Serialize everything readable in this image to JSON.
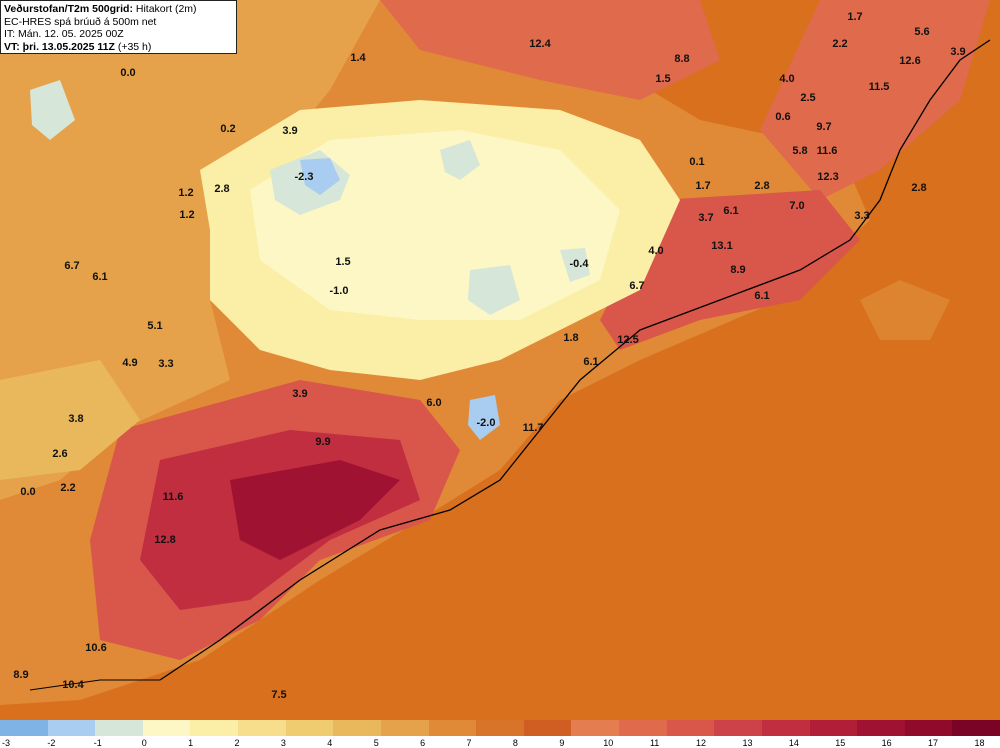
{
  "header": {
    "title": "Veðurstofan/T2m 500grid:",
    "subtitle": "Hitakort (2m)",
    "line2": "EC-HRES spá brúuð á 500m net",
    "line3": "IT: Mán. 12. 05. 2025 00Z",
    "line4_prefix": "VT: þri. 13.05.2025 11Z",
    "line4_suffix": "(+35 h)"
  },
  "labels": [
    "1.7",
    "5.6",
    "2.2",
    "3.9",
    "12.4",
    "8.8",
    "1.4",
    "0.0",
    "12.6",
    "1.5",
    "4.0",
    "3.9",
    "2.5",
    "0.2",
    "0.6",
    "11.5",
    "9.7",
    "5.8",
    "11.6",
    "0.1",
    "-2.3",
    "12.3",
    "1.7",
    "2.8",
    "2.8",
    "2.8",
    "1.2",
    "7.0",
    "1.2",
    "6.1",
    "3.7",
    "3.3",
    "13.1",
    "4.0",
    "1.5",
    "-0.4",
    "8.9",
    "6.7",
    "6.1",
    "6.7",
    "-1.0",
    "6.1",
    "5.1",
    "1.8",
    "12.5",
    "4.9",
    "3.3",
    "6.1",
    "3.9",
    "3.8",
    "6.0",
    "-2.0",
    "11.7",
    "9.9",
    "2.6",
    "0.0",
    "2.2",
    "11.6",
    "12.8",
    "10.6",
    "8.9",
    "10.4",
    "7.5"
  ],
  "scale": {
    "ticks": [
      "-3",
      "-2",
      "-1",
      "0",
      "1",
      "2",
      "3",
      "4",
      "5",
      "6",
      "7",
      "8",
      "9",
      "10",
      "11",
      "12",
      "13",
      "14",
      "15",
      "16",
      "17",
      "18"
    ],
    "colors": [
      "#7fb3e6",
      "#a9cdf0",
      "#d6e6d8",
      "#fdf7c6",
      "#fbeea6",
      "#f6de8c",
      "#efcc70",
      "#eab85c",
      "#e6a24a",
      "#e08a38",
      "#d8732a",
      "#d05e22",
      "#e47e50",
      "#e06a4c",
      "#d8564a",
      "#cc4248",
      "#c02e40",
      "#b01e38",
      "#a01232",
      "#900a2c",
      "#7a0425"
    ]
  }
}
